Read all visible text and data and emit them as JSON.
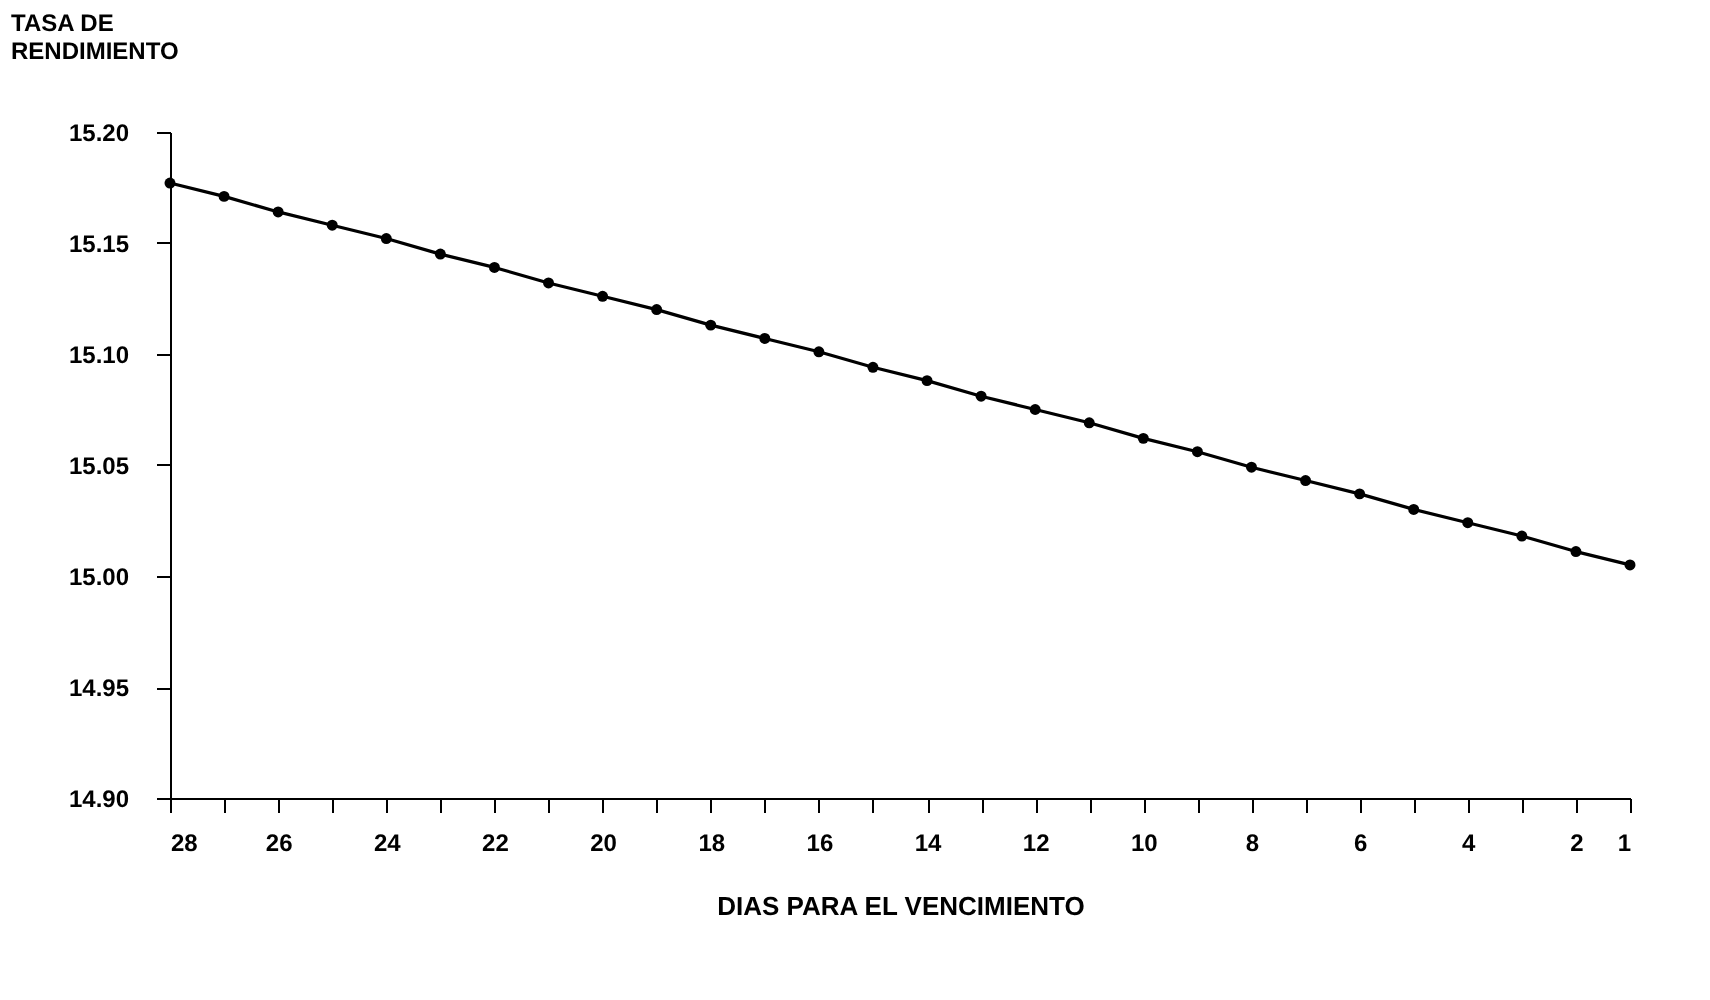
{
  "chart_data": {
    "type": "line",
    "xlabel": "DIAS PARA EL VENCIMIENTO",
    "ylabel": "TASA DE\nRENDIMIENTO",
    "x": [
      28,
      27,
      26,
      25,
      24,
      23,
      22,
      21,
      20,
      19,
      18,
      17,
      16,
      15,
      14,
      13,
      12,
      11,
      10,
      9,
      8,
      7,
      6,
      5,
      4,
      3,
      2,
      1
    ],
    "series": [
      {
        "color": "#000000",
        "values": [
          15.177,
          15.171,
          15.164,
          15.158,
          15.152,
          15.145,
          15.139,
          15.132,
          15.126,
          15.12,
          15.113,
          15.107,
          15.101,
          15.094,
          15.088,
          15.081,
          15.075,
          15.069,
          15.062,
          15.056,
          15.049,
          15.043,
          15.037,
          15.03,
          15.024,
          15.018,
          15.011,
          15.005
        ]
      }
    ],
    "xlim": [
      28,
      1
    ],
    "xticks": [
      28,
      {
        "value": 27,
        "label": null
      },
      26,
      {
        "value": 25,
        "label": null
      },
      24,
      {
        "value": 23,
        "label": null
      },
      22,
      {
        "value": 21,
        "label": null
      },
      20,
      {
        "value": 19,
        "label": null
      },
      18,
      {
        "value": 17,
        "label": null
      },
      16,
      {
        "value": 15,
        "label": null
      },
      14,
      {
        "value": 13,
        "label": null
      },
      12,
      {
        "value": 11,
        "label": null
      },
      10,
      {
        "value": 9,
        "label": null
      },
      8,
      {
        "value": 7,
        "label": null
      },
      6,
      {
        "value": 5,
        "label": null
      },
      4,
      {
        "value": 3,
        "label": null
      },
      2,
      1
    ],
    "ylim": [
      14.9,
      15.2
    ],
    "yticks": [
      {
        "value": 14.9,
        "label": "14.90"
      },
      {
        "value": 14.95,
        "label": "14.95"
      },
      {
        "value": 15.0,
        "label": "15.00"
      },
      {
        "value": 15.05,
        "label": "15.05"
      },
      {
        "value": 15.1,
        "label": "15.10"
      },
      {
        "value": 15.15,
        "label": "15.15"
      },
      {
        "value": 15.2,
        "label": "15.20"
      }
    ],
    "marker": "circle",
    "line_style": "solid",
    "grid": false
  }
}
